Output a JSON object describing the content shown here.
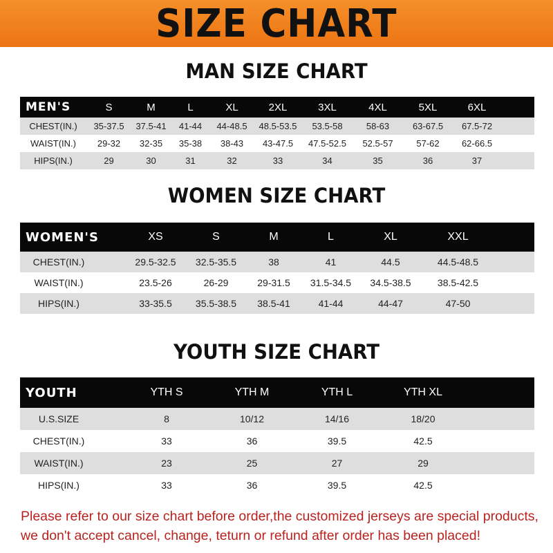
{
  "banner": {
    "title": "SIZE CHART",
    "color": "#ef7d18"
  },
  "men": {
    "title": "MAN SIZE CHART",
    "header": "MEN'S",
    "sizes": [
      "S",
      "M",
      "L",
      "XL",
      "2XL",
      "3XL",
      "4XL",
      "5XL",
      "6XL"
    ],
    "rows": [
      {
        "label": "CHEST(IN.)",
        "values": [
          "35-37.5",
          "37.5-41",
          "41-44",
          "44-48.5",
          "48.5-53.5",
          "53.5-58",
          "58-63",
          "63-67.5",
          "67.5-72"
        ]
      },
      {
        "label": "WAIST(IN.)",
        "values": [
          "29-32",
          "32-35",
          "35-38",
          "38-43",
          "43-47.5",
          "47.5-52.5",
          "52.5-57",
          "57-62",
          "62-66.5"
        ]
      },
      {
        "label": "HIPS(IN.)",
        "values": [
          "29",
          "30",
          "31",
          "32",
          "33",
          "34",
          "35",
          "36",
          "37"
        ]
      }
    ]
  },
  "women": {
    "title": "WOMEN SIZE CHART",
    "header": "WOMEN'S",
    "sizes": [
      "XS",
      "S",
      "M",
      "L",
      "XL",
      "XXL"
    ],
    "rows": [
      {
        "label": "CHEST(IN.)",
        "values": [
          "29.5-32.5",
          "32.5-35.5",
          "38",
          "41",
          "44.5",
          "44.5-48.5"
        ]
      },
      {
        "label": "WAIST(IN.)",
        "values": [
          "23.5-26",
          "26-29",
          "29-31.5",
          "31.5-34.5",
          "34.5-38.5",
          "38.5-42.5"
        ]
      },
      {
        "label": "HIPS(IN.)",
        "values": [
          "33-35.5",
          "35.5-38.5",
          "38.5-41",
          "41-44",
          "44-47",
          "47-50"
        ]
      }
    ]
  },
  "youth": {
    "title": "YOUTH SIZE CHART",
    "header": "YOUTH",
    "sizes": [
      "YTH S",
      "YTH M",
      "YTH L",
      "YTH XL"
    ],
    "rows": [
      {
        "label": "U.S.SIZE",
        "values": [
          "8",
          "10/12",
          "14/16",
          "18/20"
        ]
      },
      {
        "label": "CHEST(IN.)",
        "values": [
          "33",
          "36",
          "39.5",
          "42.5"
        ]
      },
      {
        "label": "WAIST(IN.)",
        "values": [
          "23",
          "25",
          "27",
          "29"
        ]
      },
      {
        "label": "HIPS(IN.)",
        "values": [
          "33",
          "36",
          "39.5",
          "42.5"
        ]
      }
    ]
  },
  "notice": {
    "line1": "Please refer to our size chart before order,the customized jerseys are special products,",
    "line2": "we don't accept cancel, change, teturn or refund after order has been placed!",
    "color": "#b8231f"
  }
}
